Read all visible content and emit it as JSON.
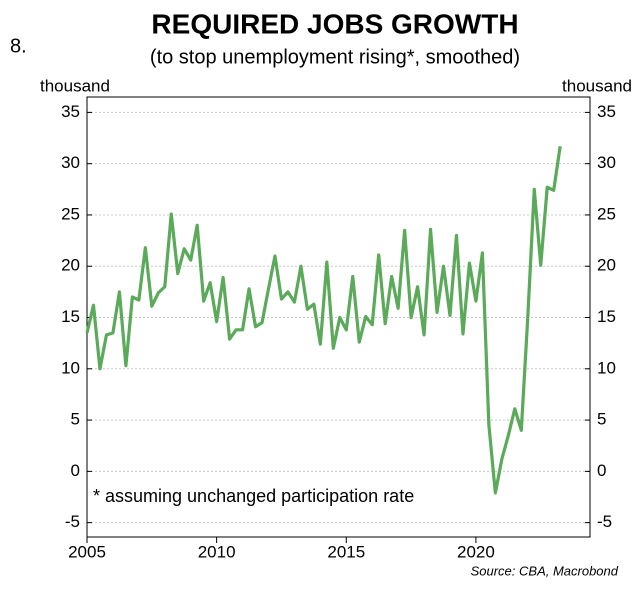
{
  "chart_data": {
    "type": "line",
    "number": "8.",
    "title": "REQUIRED JOBS GROWTH",
    "subtitle": "(to stop unemployment rising*, smoothed)",
    "y_label": "thousand",
    "y2_label": "thousand",
    "annotation": "*  assuming unchanged participation rate",
    "source": "Source: CBA, Macrobond",
    "x": [
      2005,
      2005.25,
      2005.5,
      2005.75,
      2006,
      2006.25,
      2006.5,
      2006.75,
      2007,
      2007.25,
      2007.5,
      2007.75,
      2008,
      2008.25,
      2008.5,
      2008.75,
      2009,
      2009.25,
      2009.5,
      2009.75,
      2010,
      2010.25,
      2010.5,
      2010.75,
      2011,
      2011.25,
      2011.5,
      2011.75,
      2012,
      2012.25,
      2012.5,
      2012.75,
      2013,
      2013.25,
      2013.5,
      2013.75,
      2014,
      2014.25,
      2014.5,
      2014.75,
      2015,
      2015.25,
      2015.5,
      2015.75,
      2016,
      2016.25,
      2016.5,
      2016.75,
      2017,
      2017.25,
      2017.5,
      2017.75,
      2018,
      2018.25,
      2018.5,
      2018.75,
      2019,
      2019.25,
      2019.5,
      2019.75,
      2020,
      2020.25,
      2020.5,
      2020.75,
      2021,
      2021.25,
      2021.5,
      2021.75,
      2022,
      2022.25,
      2022.5,
      2022.75,
      2023,
      2023.25
    ],
    "series": [
      {
        "name": "Required jobs growth",
        "color": "#5aaa5a",
        "values": [
          13.5,
          16.2,
          10,
          13.3,
          13.5,
          17.5,
          10.3,
          17,
          16.7,
          21.8,
          16.1,
          17.4,
          18,
          25.1,
          19.3,
          21.7,
          20.6,
          24,
          16.6,
          18.4,
          14.6,
          18.9,
          12.9,
          13.8,
          13.8,
          17.8,
          14.1,
          14.5,
          17.8,
          21,
          16.8,
          17.5,
          16.5,
          20,
          15.8,
          16.3,
          12.4,
          20.4,
          12,
          15,
          13.8,
          19,
          12.6,
          15.1,
          14.3,
          21.1,
          14.4,
          19,
          15.9,
          23.5,
          15,
          18,
          13.3,
          23.6,
          15.5,
          20,
          15.2,
          23,
          13.4,
          20.3,
          16.6,
          21.3,
          4.5,
          -2.1,
          1.2,
          3.5,
          6.1,
          4,
          15,
          27.5,
          20.1,
          27.7,
          27.4,
          31.7
        ]
      }
    ],
    "xlim": [
      2005,
      2024.4
    ],
    "xticks": [
      2005,
      2010,
      2015,
      2020
    ],
    "ylim": [
      -6.4,
      36.5
    ],
    "yticks": [
      -5,
      0,
      5,
      10,
      15,
      20,
      25,
      30,
      35
    ],
    "y2lim": [
      -6.4,
      36.5
    ],
    "y2ticks": [
      -5,
      0,
      5,
      10,
      15,
      20,
      25,
      30,
      35
    ],
    "grid": true
  }
}
